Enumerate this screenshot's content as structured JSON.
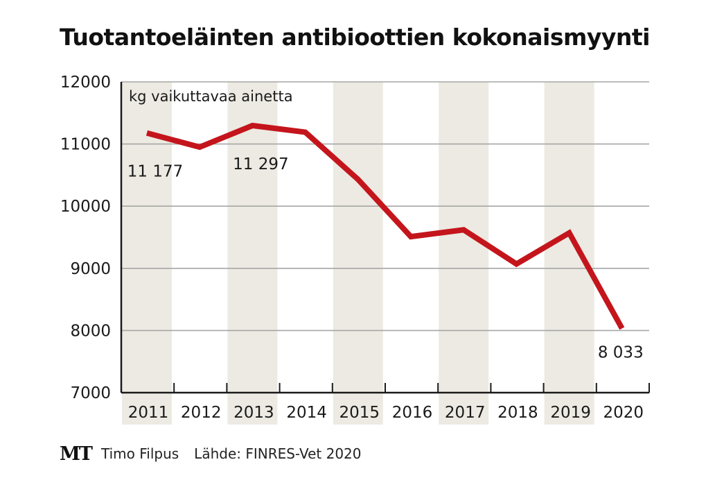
{
  "title": "Tuotantoeläinten antibioottien kokonaismyynti",
  "chart_data": {
    "type": "line",
    "ylabel": "kg vaikuttavaa ainetta",
    "categories": [
      "2011",
      "2012",
      "2013",
      "2014",
      "2015",
      "2016",
      "2017",
      "2018",
      "2019",
      "2020"
    ],
    "values": [
      11177,
      10950,
      11297,
      11190,
      10430,
      9510,
      9620,
      9070,
      9570,
      8033
    ],
    "ylim": [
      7000,
      12000
    ],
    "yticks": [
      "12000",
      "11000",
      "10000",
      "9000",
      "8000",
      "7000"
    ],
    "grid": true,
    "annotations": [
      {
        "index": 0,
        "text": "11 177"
      },
      {
        "index": 2,
        "text": "11 297"
      },
      {
        "index": 9,
        "text": "8 033"
      }
    ],
    "colors": {
      "line": "#c4151c",
      "band": "#eceae2",
      "grid": "#a6a6a6",
      "axis": "#1a1a1a"
    }
  },
  "footer": {
    "logo": "MT",
    "author": "Timo Filpus",
    "source": "Lähde: FINRES-Vet 2020"
  }
}
